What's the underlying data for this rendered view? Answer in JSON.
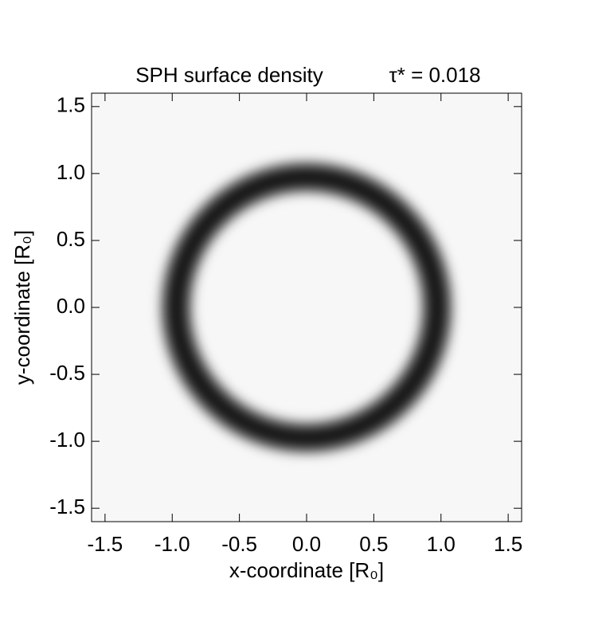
{
  "chart_data": {
    "type": "density-map",
    "title": "SPH surface density",
    "annotation": "τ* = 0.018",
    "xlabel": "x-coordinate [R₀]",
    "ylabel": "y-coordinate [R₀]",
    "xlim": [
      -1.6,
      1.6
    ],
    "ylim": [
      -1.6,
      1.6
    ],
    "xticks": [
      -1.5,
      {
        "value": -1,
        "label": "-1.0"
      },
      -0.5,
      {
        "value": 0,
        "label": "0.0"
      },
      0.5,
      {
        "value": 1,
        "label": "1.0"
      },
      1.5
    ],
    "yticks": [
      -1.5,
      {
        "value": -1,
        "label": "-1.0"
      },
      -0.5,
      {
        "value": 0,
        "label": "0.0"
      },
      0.5,
      {
        "value": 1,
        "label": "1.0"
      },
      1.5
    ],
    "ring": {
      "center": [
        0,
        0
      ],
      "radius": 0.97,
      "width": 0.16
    },
    "color": "#000000"
  }
}
